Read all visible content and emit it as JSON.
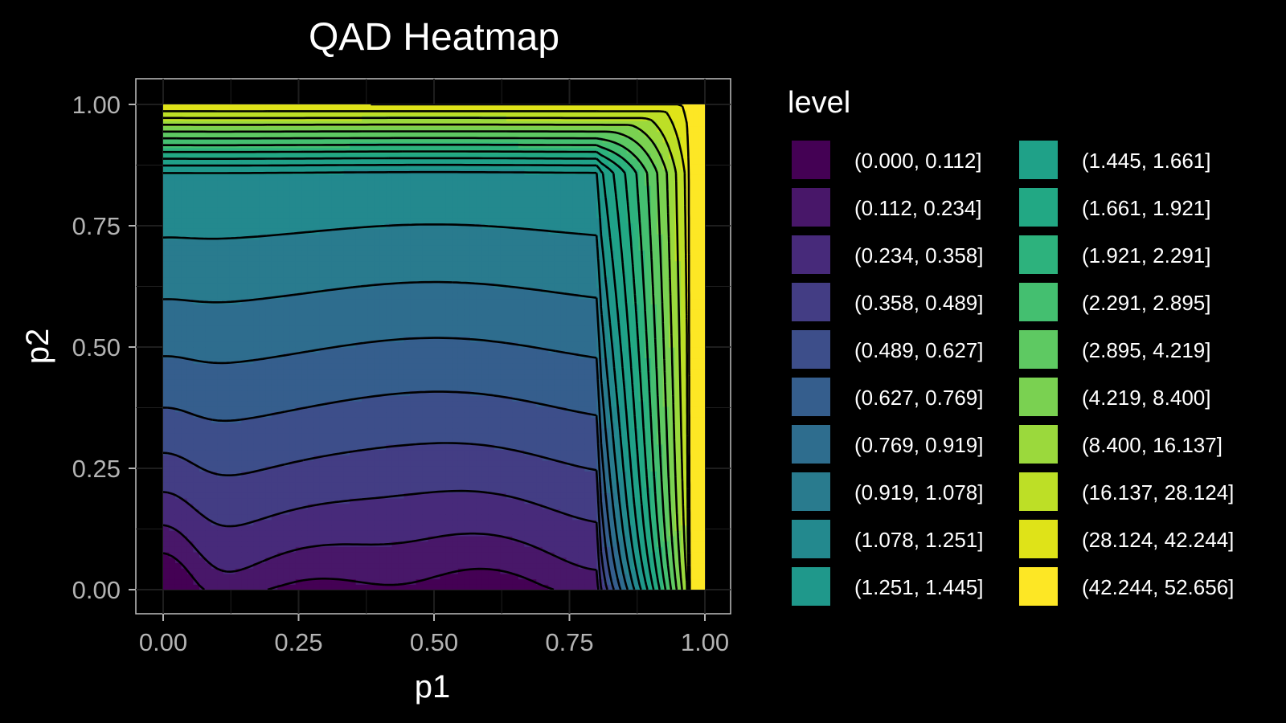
{
  "chart_data": {
    "type": "heatmap",
    "title": "QAD Heatmap",
    "xlabel": "p1",
    "ylabel": "p2",
    "xlim": [
      0,
      1
    ],
    "ylim": [
      0,
      1
    ],
    "x_ticks": [
      "0.00",
      "0.25",
      "0.50",
      "0.75",
      "1.00"
    ],
    "y_ticks": [
      "0.00",
      "0.25",
      "0.50",
      "0.75",
      "1.00"
    ],
    "grid": true,
    "legend": {
      "title": "level",
      "placement": "right",
      "entries": [
        {
          "label": "(0.000, 0.112]",
          "color": "#440154"
        },
        {
          "label": "(0.112, 0.234]",
          "color": "#481769"
        },
        {
          "label": "(0.234, 0.358]",
          "color": "#472A7A"
        },
        {
          "label": "(0.358, 0.489]",
          "color": "#433D84"
        },
        {
          "label": "(0.489, 0.627]",
          "color": "#3D4E8A"
        },
        {
          "label": "(0.627, 0.769]",
          "color": "#355E8D"
        },
        {
          "label": "(0.769, 0.919]",
          "color": "#2E6D8E"
        },
        {
          "label": "(0.919, 1.078]",
          "color": "#297B8E"
        },
        {
          "label": "(1.078, 1.251]",
          "color": "#23898E"
        },
        {
          "label": "(1.251, 1.445]",
          "color": "#1F988B"
        },
        {
          "label": "(1.445, 1.661]",
          "color": "#1FA188"
        },
        {
          "label": "(1.661, 1.921]",
          "color": "#22A884"
        },
        {
          "label": "(1.921, 2.291]",
          "color": "#2DB27D"
        },
        {
          "label": "(2.291, 2.895]",
          "color": "#44BF70"
        },
        {
          "label": "(2.895, 4.219]",
          "color": "#5EC962"
        },
        {
          "label": "(4.219, 8.400]",
          "color": "#7AD151"
        },
        {
          "label": "(8.400, 16.137]",
          "color": "#9BD93C"
        },
        {
          "label": "(16.137, 28.124]",
          "color": "#BDDF26"
        },
        {
          "label": "(28.124, 42.244]",
          "color": "#DFE318"
        },
        {
          "label": "(42.244, 52.656]",
          "color": "#FDE725"
        }
      ]
    }
  }
}
